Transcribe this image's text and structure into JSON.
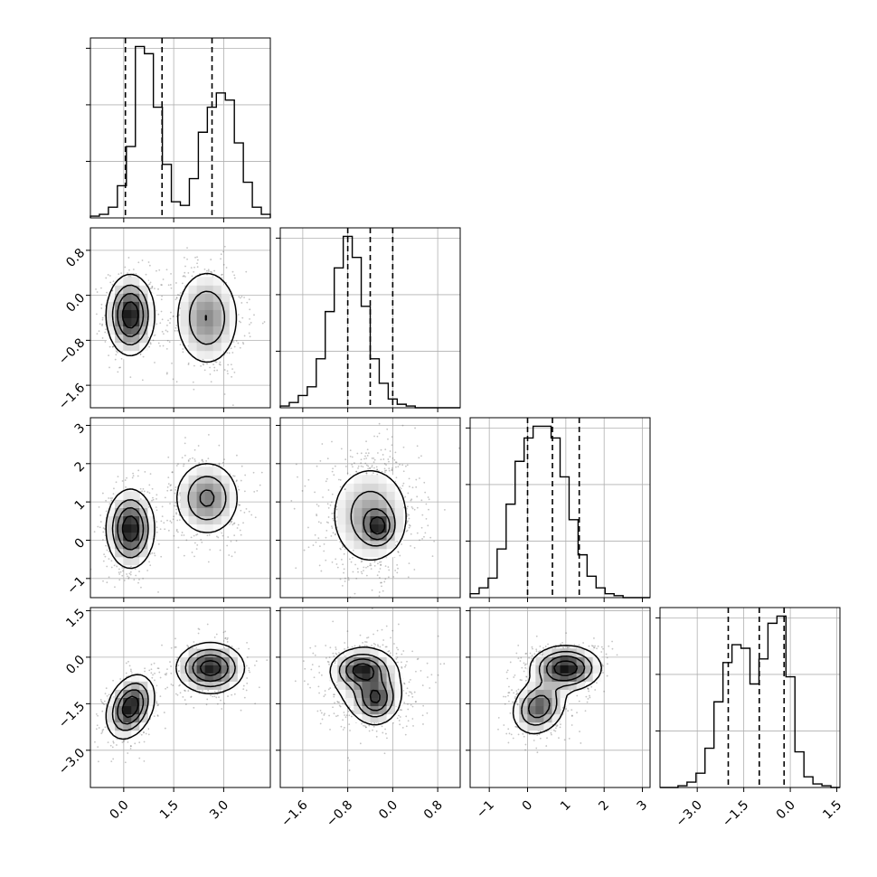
{
  "chart_data": {
    "type": "corner",
    "grid": true,
    "colors": {
      "line": "#000000",
      "points": "#555555",
      "grid": "#b0b0b0"
    },
    "params": [
      {
        "range": [
          -1.0,
          4.4
        ],
        "ticks": [
          0.0,
          1.5,
          3.0
        ],
        "tick_labels": [
          "0.0",
          "1.5",
          "3.0"
        ],
        "quantiles": [
          0.05,
          1.15,
          2.65
        ],
        "hist_edges_start": -1.0,
        "hist_edges_step": 0.27,
        "hist_counts": [
          1,
          2,
          6,
          18,
          40,
          96,
          92,
          62,
          30,
          9,
          7,
          22,
          48,
          62,
          70,
          66,
          42,
          20,
          6,
          2
        ]
      },
      {
        "range": [
          -2.0,
          1.2
        ],
        "ticks": [
          -1.6,
          -0.8,
          0.0,
          0.8
        ],
        "tick_labels": [
          "−1.6",
          "−0.8",
          "0.0",
          "0.8"
        ],
        "quantiles": [
          -0.8,
          -0.4,
          0.0
        ],
        "hist_edges_start": -2.0,
        "hist_edges_step": 0.16,
        "hist_counts": [
          1,
          3,
          7,
          12,
          28,
          55,
          80,
          98,
          86,
          58,
          28,
          14,
          5,
          2,
          1,
          0,
          0,
          0,
          0,
          0
        ]
      },
      {
        "range": [
          -1.5,
          3.2
        ],
        "ticks": [
          -1,
          0,
          1,
          2,
          3
        ],
        "tick_labels": [
          "−1",
          "0",
          "1",
          "2",
          "3"
        ],
        "quantiles": [
          0.0,
          0.65,
          1.35
        ],
        "hist_edges_start": -1.5,
        "hist_edges_step": 0.235,
        "hist_counts": [
          2,
          5,
          10,
          25,
          48,
          70,
          82,
          88,
          88,
          82,
          62,
          40,
          22,
          11,
          5,
          2,
          1,
          0,
          0,
          0
        ]
      },
      {
        "range": [
          -4.2,
          1.6
        ],
        "ticks": [
          -3.0,
          -1.5,
          0.0,
          1.5
        ],
        "tick_labels": [
          "−3.0",
          "−1.5",
          "0.0",
          "1.5"
        ],
        "quantiles": [
          -2.0,
          -1.0,
          -0.2
        ],
        "hist_edges_start": -4.2,
        "hist_edges_step": 0.29,
        "hist_counts": [
          0,
          0,
          1,
          3,
          8,
          22,
          48,
          70,
          80,
          78,
          58,
          72,
          92,
          96,
          62,
          20,
          6,
          2,
          1,
          0
        ]
      }
    ],
    "pairs": [
      {
        "x": 0,
        "y": 1,
        "blobs": [
          {
            "cx": 0.2,
            "cy": -0.35,
            "sx": 0.35,
            "sy": 0.35,
            "r": 0.0,
            "w": 1.0
          },
          {
            "cx": 2.5,
            "cy": -0.4,
            "sx": 0.5,
            "sy": 0.45,
            "r": 0.0,
            "w": 0.55
          }
        ]
      },
      {
        "x": 0,
        "y": 2,
        "blobs": [
          {
            "cx": 0.2,
            "cy": 0.3,
            "sx": 0.35,
            "sy": 0.5,
            "r": 0.0,
            "w": 1.0
          },
          {
            "cx": 2.5,
            "cy": 1.1,
            "sx": 0.5,
            "sy": 0.5,
            "r": 0.0,
            "w": 0.6
          }
        ]
      },
      {
        "x": 1,
        "y": 2,
        "blobs": [
          {
            "cx": -0.4,
            "cy": 0.65,
            "sx": 0.38,
            "sy": 0.7,
            "r": 0.0,
            "w": 0.55
          },
          {
            "cx": -0.25,
            "cy": 0.35,
            "sx": 0.15,
            "sy": 0.25,
            "r": 0.0,
            "w": 0.7
          }
        ]
      },
      {
        "x": 0,
        "y": 3,
        "blobs": [
          {
            "cx": 0.2,
            "cy": -1.6,
            "sx": 0.35,
            "sy": 0.5,
            "r": 0.3,
            "w": 1.0
          },
          {
            "cx": 2.6,
            "cy": -0.35,
            "sx": 0.5,
            "sy": 0.4,
            "r": 0.0,
            "w": 0.95
          }
        ]
      },
      {
        "x": 1,
        "y": 3,
        "blobs": [
          {
            "cx": -0.55,
            "cy": -0.4,
            "sx": 0.25,
            "sy": 0.3,
            "r": 0.0,
            "w": 1.0
          },
          {
            "cx": -0.3,
            "cy": -1.35,
            "sx": 0.2,
            "sy": 0.4,
            "r": 0.0,
            "w": 0.9
          },
          {
            "cx": -0.45,
            "cy": -0.8,
            "sx": 0.4,
            "sy": 0.7,
            "r": 0.0,
            "w": 0.35
          }
        ]
      },
      {
        "x": 2,
        "y": 3,
        "blobs": [
          {
            "cx": 1.0,
            "cy": -0.35,
            "sx": 0.45,
            "sy": 0.35,
            "r": 0.0,
            "w": 1.0
          },
          {
            "cx": 0.3,
            "cy": -1.6,
            "sx": 0.35,
            "sy": 0.45,
            "r": 0.2,
            "w": 0.75
          }
        ]
      }
    ]
  }
}
